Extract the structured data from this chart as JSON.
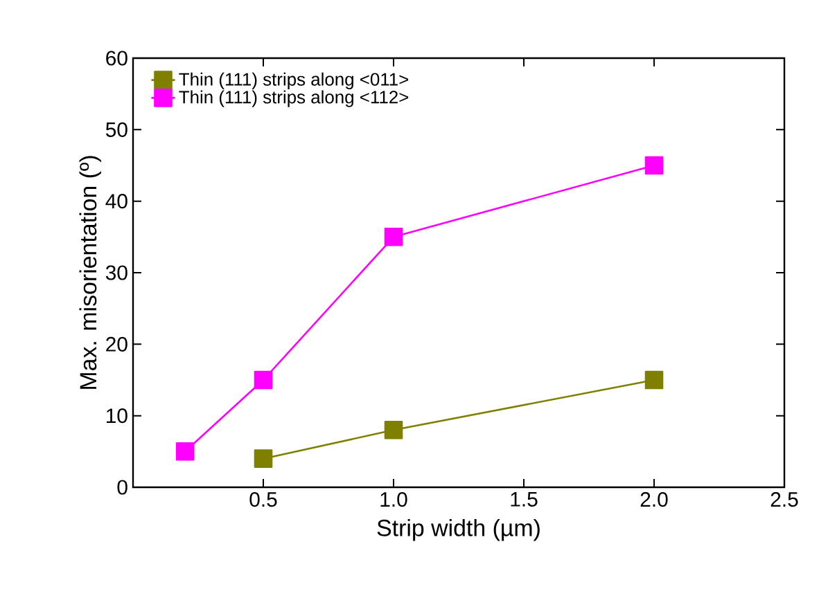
{
  "chart_data": {
    "type": "line",
    "xlabel": "Strip width (µm)",
    "ylabel": "Max. misorientation (º)",
    "xlim": [
      0,
      2.5
    ],
    "ylim": [
      0,
      60
    ],
    "xticks": [
      0.5,
      {
        "value": 1.0,
        "label": "1.0"
      },
      1.5,
      {
        "value": 2.0,
        "label": "2.0"
      },
      2.5
    ],
    "yticks": [
      0,
      10,
      20,
      30,
      40,
      50,
      60
    ],
    "series": [
      {
        "name": "Thin (111) strips along <011>",
        "color": "#808000",
        "x": [
          0.5,
          1.0,
          2.0
        ],
        "values": [
          4,
          8,
          15
        ]
      },
      {
        "name": "Thin (111) strips along <112>",
        "color": "#ff00ff",
        "x": [
          0.2,
          0.5,
          1.0,
          2.0
        ],
        "values": [
          5,
          15,
          35,
          45
        ]
      }
    ],
    "marker": "square",
    "line_style": "solid",
    "legend": "top left",
    "grid": false
  }
}
